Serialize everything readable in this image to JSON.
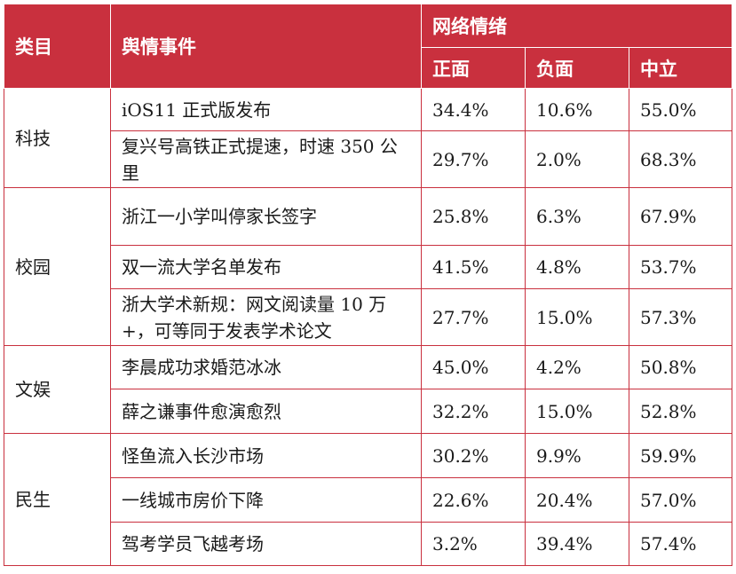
{
  "header": {
    "category": "类目",
    "event": "舆情事件",
    "sentiment_group": "网络情绪",
    "positive": "正面",
    "negative": "负面",
    "neutral": "中立"
  },
  "groups": [
    {
      "category": "科技",
      "rows": [
        {
          "event": "iOS11 正式版发布",
          "positive": "34.4%",
          "negative": "10.6%",
          "neutral": "55.0%"
        },
        {
          "event": "复兴号高铁正式提速，时速 350 公里",
          "positive": "29.7%",
          "negative": "2.0%",
          "neutral": "68.3%"
        }
      ]
    },
    {
      "category": "校园",
      "rows": [
        {
          "event": "浙江一小学叫停家长签字",
          "positive": "25.8%",
          "negative": "6.3%",
          "neutral": "67.9%"
        },
        {
          "event": "双一流大学名单发布",
          "positive": "41.5%",
          "negative": "4.8%",
          "neutral": "53.7%"
        },
        {
          "event": "浙大学术新规：网文阅读量 10 万+，可等同于发表学术论文",
          "positive": "27.7%",
          "negative": "15.0%",
          "neutral": "57.3%"
        }
      ]
    },
    {
      "category": "文娱",
      "rows": [
        {
          "event": "李晨成功求婚范冰冰",
          "positive": "45.0%",
          "negative": "4.2%",
          "neutral": "50.8%"
        },
        {
          "event": "薛之谦事件愈演愈烈",
          "positive": "32.2%",
          "negative": "15.0%",
          "neutral": "52.8%"
        }
      ]
    },
    {
      "category": "民生",
      "rows": [
        {
          "event": "怪鱼流入长沙市场",
          "positive": "30.2%",
          "negative": "9.9%",
          "neutral": "59.9%"
        },
        {
          "event": "一线城市房价下降",
          "positive": "22.6%",
          "negative": "20.4%",
          "neutral": "57.0%"
        },
        {
          "event": "驾考学员飞越考场",
          "positive": "3.2%",
          "negative": "39.4%",
          "neutral": "57.4%"
        }
      ]
    }
  ]
}
